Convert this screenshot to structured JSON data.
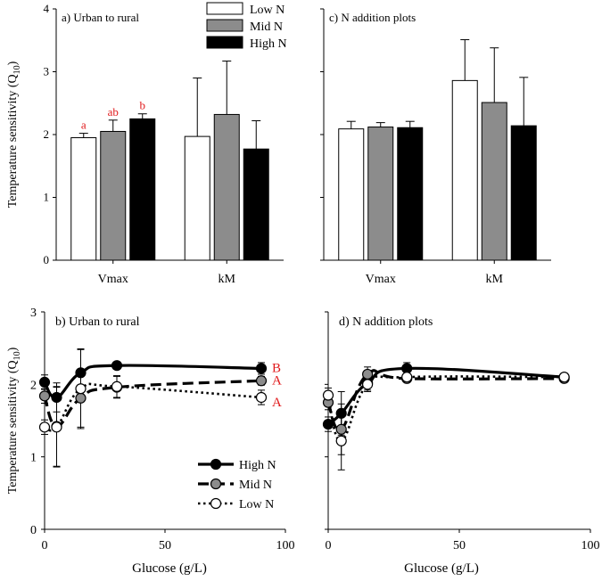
{
  "y_label": "Temperature sensitivity (Q10)",
  "colors": {
    "low": "#ffffff",
    "mid": "#8c8c8c",
    "high": "#000000",
    "letters": "#e0191b",
    "axis": "#000000"
  },
  "chart_data": [
    {
      "id": "a",
      "type": "bar",
      "title": "a) Urban to rural",
      "ylabel": "Temperature sensitivity (Q10)",
      "xlabel": "",
      "ylim": [
        0,
        4
      ],
      "yticks": [
        "0",
        "1",
        "2",
        "3",
        "4"
      ],
      "categories": [
        "Vmax",
        "kM"
      ],
      "series": [
        {
          "name": "Low N",
          "key": "low",
          "values": [
            1.95,
            1.97
          ],
          "errors": [
            0.07,
            0.93
          ],
          "letters": [
            "a",
            ""
          ]
        },
        {
          "name": "Mid N",
          "key": "mid",
          "values": [
            2.05,
            2.32
          ],
          "errors": [
            0.18,
            0.85
          ],
          "letters": [
            "ab",
            ""
          ]
        },
        {
          "name": "High N",
          "key": "high",
          "values": [
            2.25,
            1.77
          ],
          "errors": [
            0.08,
            0.45
          ],
          "letters": [
            "b",
            ""
          ]
        }
      ],
      "legend": [
        "Low N",
        "Mid N",
        "High N"
      ]
    },
    {
      "id": "c",
      "type": "bar",
      "title": "c) N addition plots",
      "ylim": [
        0,
        4
      ],
      "categories": [
        "Vmax",
        "kM"
      ],
      "series": [
        {
          "name": "Low N",
          "key": "low",
          "values": [
            2.09,
            2.86
          ],
          "errors": [
            0.12,
            0.65
          ]
        },
        {
          "name": "Mid N",
          "key": "mid",
          "values": [
            2.12,
            2.51
          ],
          "errors": [
            0.07,
            0.87
          ]
        },
        {
          "name": "High N",
          "key": "high",
          "values": [
            2.11,
            2.14
          ],
          "errors": [
            0.1,
            0.77
          ]
        }
      ]
    },
    {
      "id": "b",
      "type": "line",
      "title": "b) Urban to rural",
      "ylabel": "Temperature sensitivity (Q10)",
      "xlabel": "Glucose (g/L)",
      "xlim": [
        0,
        100
      ],
      "ylim": [
        0,
        3
      ],
      "xticks": [
        "0",
        "50",
        "100"
      ],
      "yticks": [
        "0",
        "1",
        "2",
        "3"
      ],
      "x": [
        0,
        5,
        15,
        30,
        90
      ],
      "series": [
        {
          "name": "High N",
          "key": "high",
          "values": [
            2.03,
            1.82,
            2.16,
            2.26,
            2.22
          ],
          "errors": [
            0.1,
            0.2,
            0.32,
            0.05,
            0.08
          ],
          "letter": "B"
        },
        {
          "name": "Mid N",
          "key": "mid",
          "values": [
            1.84,
            1.42,
            1.81,
            1.96,
            2.05
          ],
          "errors": [
            0.1,
            0.55,
            0.4,
            0.15,
            0.06
          ],
          "letter": "A"
        },
        {
          "name": "Low N",
          "key": "low",
          "values": [
            1.41,
            1.41,
            1.94,
            1.97,
            1.82
          ],
          "errors": [
            0.1,
            0.55,
            0.55,
            0.15,
            0.1
          ],
          "letter": "A"
        }
      ],
      "legend": [
        "High N",
        "Mid N",
        "Low N"
      ]
    },
    {
      "id": "d",
      "type": "line",
      "title": "d) N addition plots",
      "xlabel": "Glucose (g/L)",
      "xlim": [
        0,
        100
      ],
      "ylim": [
        0,
        3
      ],
      "xticks": [
        "0",
        "50",
        "100"
      ],
      "x": [
        0,
        5,
        15,
        30,
        90
      ],
      "series": [
        {
          "name": "High N",
          "key": "high",
          "values": [
            1.45,
            1.6,
            2.02,
            2.22,
            2.1
          ],
          "errors": [
            0.1,
            0.3,
            0.1,
            0.08,
            0.05
          ]
        },
        {
          "name": "Mid N",
          "key": "mid",
          "values": [
            1.75,
            1.38,
            2.14,
            2.08,
            2.08
          ],
          "errors": [
            0.1,
            0.35,
            0.1,
            0.05,
            0.05
          ]
        },
        {
          "name": "Low N",
          "key": "low",
          "values": [
            1.85,
            1.22,
            2.0,
            2.1,
            2.1
          ],
          "errors": [
            0.1,
            0.4,
            0.1,
            0.05,
            0.05
          ]
        }
      ]
    }
  ]
}
